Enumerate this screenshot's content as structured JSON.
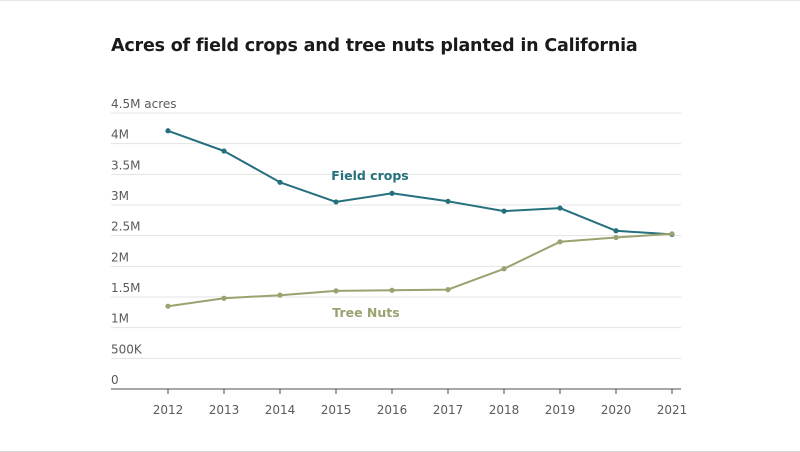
{
  "chart_data": {
    "type": "line",
    "title": "Acres of field crops and tree nuts planted in California",
    "x": [
      2012,
      2013,
      2014,
      2015,
      2016,
      2017,
      2018,
      2019,
      2020,
      2021
    ],
    "x_tick_labels": [
      "2012",
      "2013",
      "2014",
      "2015",
      "2016",
      "2017",
      "2018",
      "2019",
      "2020",
      "2021"
    ],
    "y_ticks": [
      0,
      500000,
      1000000,
      1500000,
      2000000,
      2500000,
      3000000,
      3500000,
      4000000,
      4500000
    ],
    "y_tick_labels": [
      "0",
      "500K",
      "1M",
      "1.5M",
      "2M",
      "2.5M",
      "3M",
      "3.5M",
      "4M",
      "4.5M acres"
    ],
    "ylim": [
      0,
      4500000
    ],
    "grid": true,
    "series": [
      {
        "name": "Field crops",
        "color": "#25707d",
        "values": [
          4210000,
          3880000,
          3370000,
          3050000,
          3190000,
          3060000,
          2900000,
          2950000,
          2580000,
          2520000
        ]
      },
      {
        "name": "Tree Nuts",
        "color": "#99a370",
        "values": [
          1350000,
          1480000,
          1530000,
          1600000,
          1610000,
          1620000,
          1960000,
          2400000,
          2470000,
          2530000
        ]
      }
    ]
  }
}
